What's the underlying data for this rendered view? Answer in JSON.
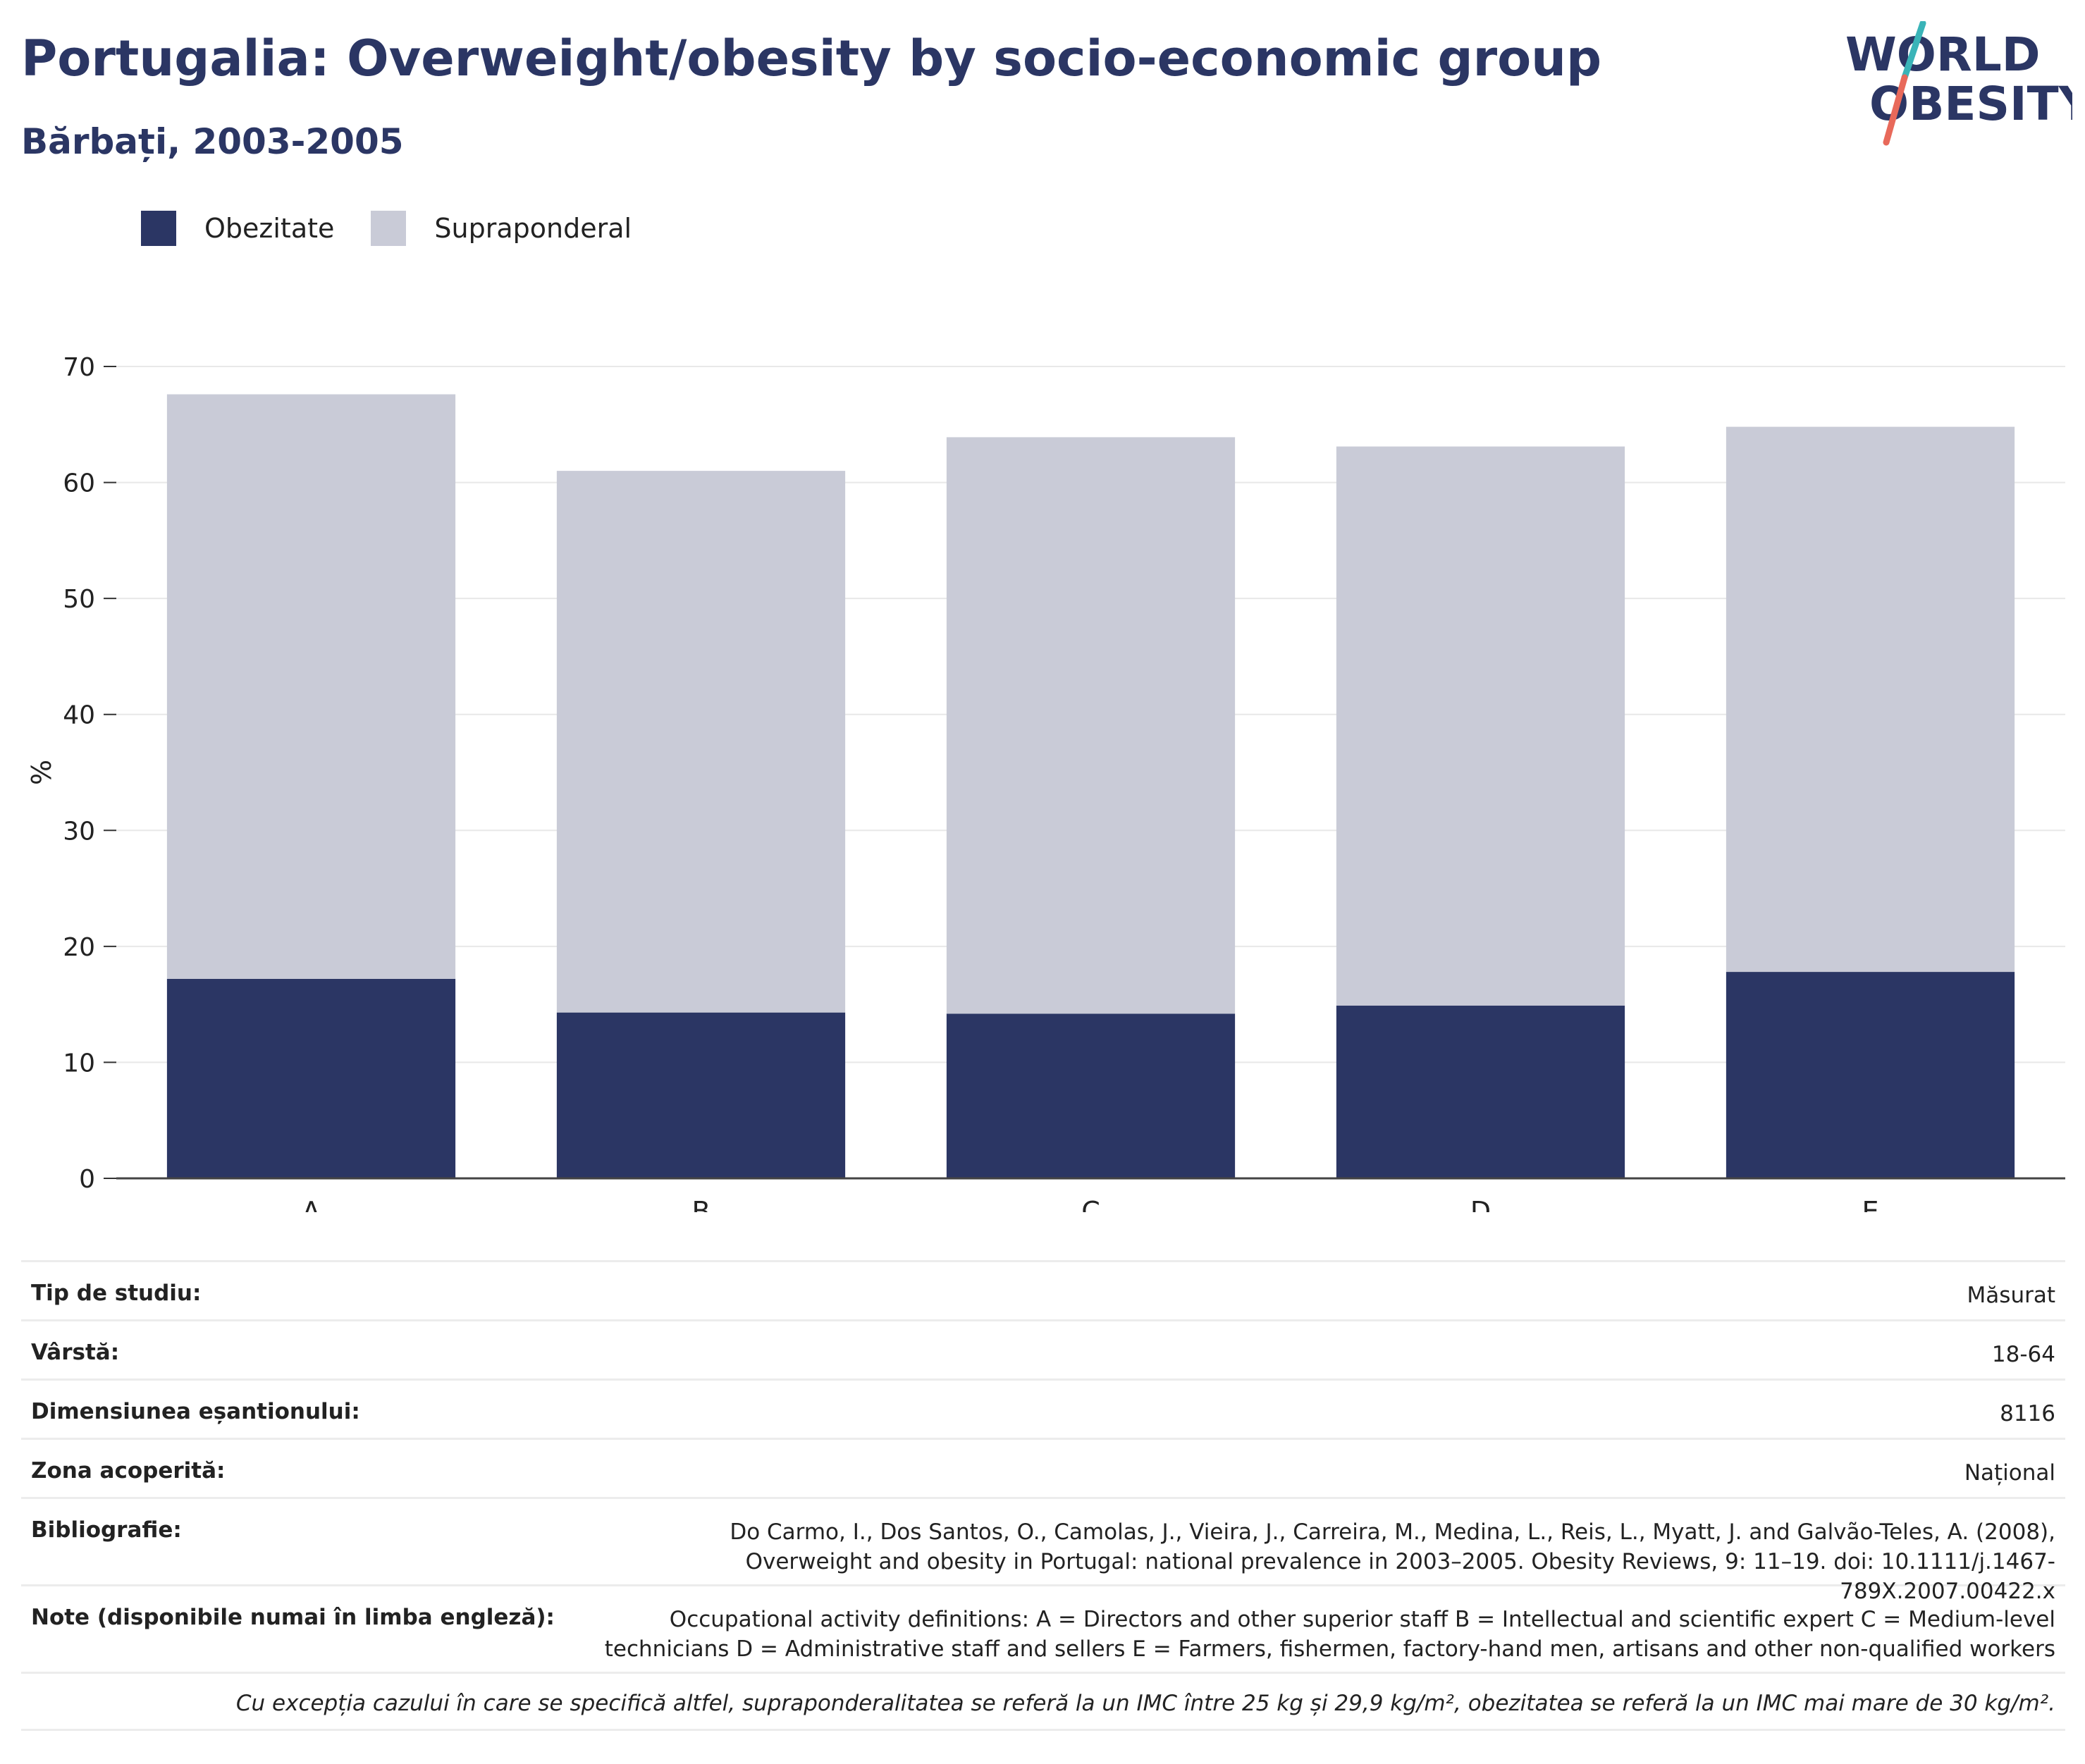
{
  "header": {
    "title": "Portugalia: Overweight/obesity by socio-economic group",
    "subtitle": "Bărbați, 2003-2005"
  },
  "logo": {
    "line1": "WORLD",
    "line2": "OBESITY"
  },
  "colors": {
    "obesity": "#2b3664",
    "overweight": "#c9cbd7",
    "title": "#2b3664",
    "logo_teal": "#3ab4b8",
    "logo_coral": "#e8695a"
  },
  "chart_data": {
    "type": "bar",
    "stacked": true,
    "categories": [
      "A",
      "B",
      "C",
      "D",
      "E"
    ],
    "series": [
      {
        "name": "Obezitate",
        "values": [
          17.2,
          14.3,
          14.2,
          14.9,
          17.8
        ]
      },
      {
        "name": "Supraponderal",
        "values": [
          50.4,
          46.7,
          49.7,
          48.2,
          47.0
        ]
      }
    ],
    "xlabel": "",
    "ylabel": "%",
    "ylim": [
      0,
      70
    ],
    "yticks": [
      0,
      10,
      20,
      30,
      40,
      50,
      60,
      70
    ],
    "grid": true,
    "legend": "top-left"
  },
  "info": {
    "rows": [
      {
        "label": "Tip de studiu:",
        "value": "Măsurat"
      },
      {
        "label": "Vârstă:",
        "value": "18-64"
      },
      {
        "label": "Dimensiunea eșantionului:",
        "value": "8116"
      },
      {
        "label": "Zona acoperită:",
        "value": "Național"
      },
      {
        "label": "Bibliografie:",
        "value": "Do Carmo, I., Dos Santos, O., Camolas, J., Vieira, J., Carreira, M., Medina, L., Reis, L., Myatt, J. and Galvão-Teles, A. (2008), Overweight and obesity in Portugal: national prevalence in 2003–2005. Obesity Reviews, 9: 11–19. doi: 10.1111/j.1467-789X.2007.00422.x"
      },
      {
        "label": "Note (disponibile numai în limba engleză):",
        "value": "Occupational activity definitions: A = Directors and other superior staff B = Intellectual and scientific expert C = Medium-level technicians D = Administrative staff and sellers E = Farmers, fishermen, factory-hand men, artisans and other non-qualified workers"
      }
    ],
    "footnote": "Cu excepția cazului în care se specifică altfel, supraponderalitatea se referă la un IMC între 25 kg și 29,9 kg/m², obezitatea se referă la un IMC mai mare de 30 kg/m²."
  }
}
